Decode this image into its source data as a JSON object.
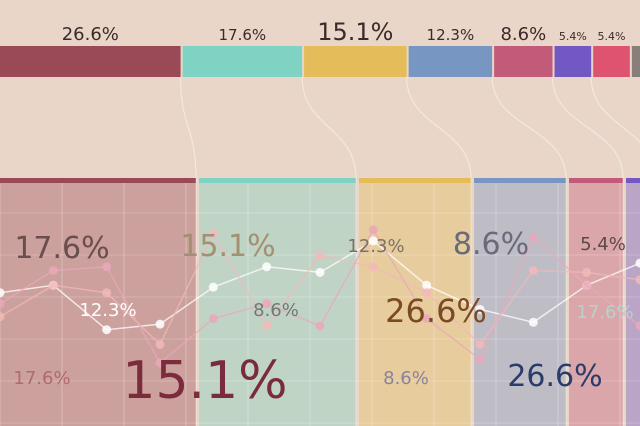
{
  "chart_data": {
    "type": "bar",
    "title": "",
    "xlabel": "",
    "ylabel": "",
    "segments": [
      {
        "label": "26.6%",
        "value": 26.6,
        "color": "#9a4a57"
      },
      {
        "label": "17.6%",
        "value": 17.6,
        "color": "#7fd3c3"
      },
      {
        "label": "15.1%",
        "value": 15.1,
        "color": "#e5bc5a"
      },
      {
        "label": "12.3%",
        "value": 12.3,
        "color": "#7896c2"
      },
      {
        "label": "8.6%",
        "value": 8.6,
        "color": "#c25a7a"
      },
      {
        "label": "5.4%",
        "value": 5.4,
        "color": "#7158c2"
      },
      {
        "label": "5.4%",
        "value": 5.4,
        "color": "#de5470"
      },
      {
        "label": "",
        "value": 1.2,
        "color": "#8a7e7a"
      }
    ],
    "overlay_labels": [
      {
        "text": "17.6%",
        "size": "large",
        "color": "#6a4e4e"
      },
      {
        "text": "15.1%",
        "size": "large",
        "color": "#a39070"
      },
      {
        "text": "12.3%",
        "size": "medium",
        "color": "#7b7266"
      },
      {
        "text": "8.6%",
        "size": "large",
        "color": "#6a6a7a"
      },
      {
        "text": "5.4%",
        "size": "medium",
        "color": "#5a4a4a"
      },
      {
        "text": "12.3%",
        "size": "medium",
        "color": "#ffffff"
      },
      {
        "text": "8.6%",
        "size": "medium",
        "color": "#6f7a72"
      },
      {
        "text": "26.6%",
        "size": "xlarge",
        "color": "#7a4a22"
      },
      {
        "text": "17.6%",
        "size": "medium",
        "color": "#b4d4c8"
      },
      {
        "text": "17.6%",
        "size": "medium",
        "color": "#b06a70"
      },
      {
        "text": "15.1%",
        "size": "xxlarge",
        "color": "#7a2c3c"
      },
      {
        "text": "8.6%",
        "size": "medium",
        "color": "#8a829c"
      },
      {
        "text": "26.6%",
        "size": "large",
        "color": "#2a3c6a"
      }
    ],
    "lines": [
      {
        "color": "#ffffff",
        "values": [
          0.58,
          0.62,
          0.38,
          0.41,
          0.61,
          0.72,
          0.69,
          0.86,
          0.62,
          0.49,
          0.42,
          0.62,
          0.74
        ]
      },
      {
        "color": "#f2b8b8",
        "values": [
          0.45,
          0.62,
          0.58,
          0.3,
          0.9,
          0.4,
          0.78,
          0.72,
          0.58,
          0.3,
          0.7,
          0.69,
          0.65
        ]
      },
      {
        "color": "#e9a8b8",
        "values": [
          0.52,
          0.7,
          0.72,
          0.2,
          0.44,
          0.52,
          0.4,
          0.92,
          0.44,
          0.22,
          0.88,
          0.62,
          0.4
        ]
      }
    ]
  }
}
